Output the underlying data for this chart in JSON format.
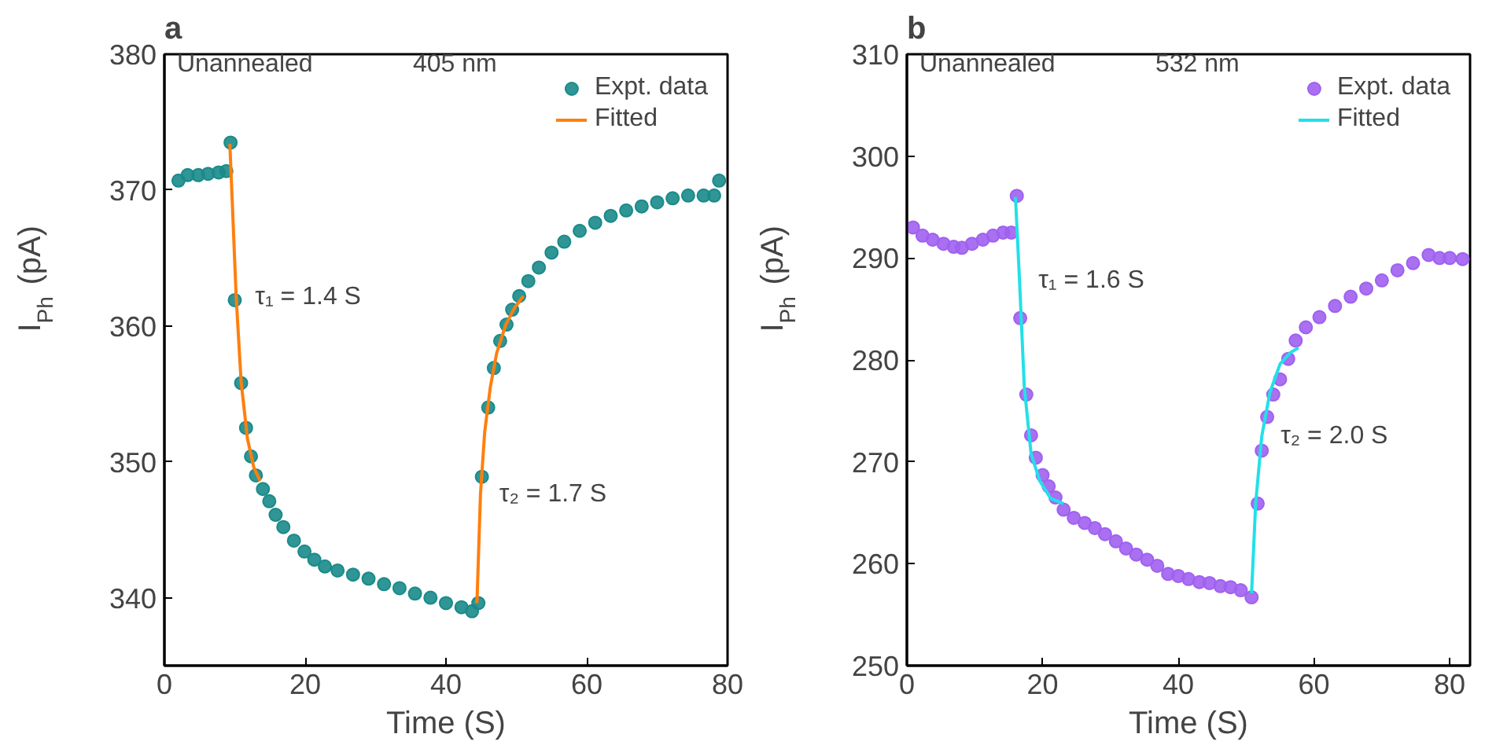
{
  "chart_data": [
    {
      "type": "scatter",
      "title": "a",
      "xlabel": "Time (S)",
      "ylabel": "I$_{Ph}$ (pA)",
      "xlim": [
        0,
        80
      ],
      "ylim": [
        335,
        380
      ],
      "xticks": [
        0,
        20,
        40,
        60,
        80
      ],
      "yticks": [
        340,
        350,
        360,
        370,
        380
      ],
      "grid": false,
      "legend": "top right",
      "annotations": [
        "Unannealed",
        "405 nm",
        {
          "text": "τ₁ = 1.4 S",
          "x": 10.2,
          "y": 362.1
        },
        {
          "text": "τ₂ = 1.7 S",
          "x": 44.9,
          "y": 347.6
        }
      ],
      "series": [
        {
          "name": "Expt. data",
          "marker": "circle",
          "color": "#1a8a8a",
          "x": [
            2.0,
            3.3,
            4.8,
            6.2,
            7.7,
            8.8,
            9.4,
            10.0,
            10.9,
            11.6,
            12.3,
            13.0,
            14.0,
            14.9,
            15.8,
            16.9,
            18.4,
            19.9,
            21.3,
            22.8,
            24.6,
            26.8,
            29.0,
            31.2,
            33.4,
            35.6,
            37.8,
            40.0,
            42.2,
            43.7,
            44.6,
            45.1,
            46.0,
            46.8,
            47.7,
            48.6,
            49.4,
            50.4,
            51.7,
            53.2,
            55.0,
            56.8,
            59.0,
            61.2,
            63.4,
            65.6,
            67.8,
            70.0,
            72.2,
            74.4,
            76.6,
            78.1,
            78.8
          ],
          "values": [
            370.7,
            371.1,
            371.1,
            371.2,
            371.3,
            371.4,
            373.5,
            361.9,
            355.8,
            352.5,
            350.4,
            349.0,
            348.0,
            347.1,
            346.1,
            345.2,
            344.2,
            343.4,
            342.8,
            342.3,
            342.0,
            341.7,
            341.4,
            341.0,
            340.7,
            340.3,
            340.0,
            339.6,
            339.3,
            339.0,
            339.6,
            348.9,
            354.0,
            356.9,
            358.9,
            360.1,
            361.2,
            362.2,
            363.3,
            364.3,
            365.4,
            366.2,
            367.0,
            367.6,
            368.1,
            368.5,
            368.8,
            369.1,
            369.4,
            369.6,
            369.6,
            369.6,
            370.7
          ]
        },
        {
          "name": "Fitted",
          "type": "line",
          "color": "#ff7f0e",
          "line_style": "solid",
          "x": [
            9.3,
            9.7,
            10.2,
            10.9,
            11.8,
            12.7,
            13.6
          ],
          "values": [
            373.4,
            368.4,
            362.1,
            355.9,
            351.7,
            349.6,
            348.6
          ]
        },
        {
          "type": "line",
          "color": "#ff7f0e",
          "line_style": "solid",
          "x": [
            44.4,
            44.9,
            45.5,
            46.3,
            47.2,
            48.5,
            49.7,
            51.0
          ],
          "values": [
            339.6,
            347.6,
            352.2,
            355.5,
            358.0,
            360.1,
            361.3,
            362.2
          ]
        }
      ]
    },
    {
      "type": "scatter",
      "title": "b",
      "xlabel": "Time (S)",
      "ylabel": "I$_{Ph}$ (pA)",
      "xlim": [
        0,
        83
      ],
      "ylim": [
        250,
        310
      ],
      "xticks": [
        0,
        20,
        40,
        60,
        80
      ],
      "yticks": [
        250,
        260,
        270,
        280,
        290,
        300,
        310
      ],
      "grid": false,
      "legend": "top right",
      "annotations": [
        "Unannealed",
        "532 nm",
        {
          "text": "τ₁ = 1.6 S",
          "x": 16.6,
          "y": 287.8
        },
        {
          "text": "τ₂ = 2.0 S",
          "x": 52.3,
          "y": 272.5
        }
      ],
      "series": [
        {
          "name": "Expt. data",
          "marker": "circle",
          "color": "#a060f0",
          "x": [
            0.9,
            2.3,
            3.8,
            5.4,
            6.9,
            8.1,
            9.6,
            11.2,
            12.7,
            14.2,
            15.4,
            16.2,
            16.7,
            17.6,
            18.3,
            19.0,
            20.0,
            20.9,
            21.9,
            23.1,
            24.6,
            26.2,
            27.7,
            29.2,
            30.8,
            32.3,
            33.8,
            35.4,
            36.9,
            38.5,
            40.0,
            41.5,
            43.1,
            44.6,
            46.2,
            47.7,
            49.2,
            50.8,
            51.7,
            52.3,
            53.1,
            54.0,
            55.0,
            56.2,
            57.3,
            58.8,
            60.8,
            63.1,
            65.4,
            67.7,
            70.0,
            72.3,
            74.6,
            76.9,
            78.5,
            80.0,
            81.9
          ],
          "values": [
            293.0,
            292.2,
            291.8,
            291.4,
            291.1,
            291.0,
            291.4,
            291.8,
            292.2,
            292.5,
            292.5,
            296.1,
            284.1,
            276.6,
            272.6,
            270.4,
            268.7,
            267.6,
            266.5,
            265.3,
            264.5,
            264.0,
            263.5,
            262.9,
            262.2,
            261.5,
            260.9,
            260.4,
            259.8,
            259.0,
            258.8,
            258.5,
            258.2,
            258.1,
            257.8,
            257.7,
            257.4,
            256.7,
            265.9,
            271.1,
            274.4,
            276.6,
            278.1,
            280.1,
            281.9,
            283.2,
            284.2,
            285.3,
            286.2,
            287.0,
            287.8,
            288.8,
            289.5,
            290.3,
            290.0,
            290.0,
            289.9
          ]
        },
        {
          "name": "Fitted",
          "type": "line",
          "color": "#22e0e8",
          "line_style": "solid",
          "x": [
            16.0,
            16.6,
            17.3,
            18.3,
            19.6,
            21.2,
            23.1
          ],
          "values": [
            296.0,
            287.8,
            277.4,
            270.8,
            268.1,
            266.4,
            265.9
          ]
        },
        {
          "type": "line",
          "color": "#22e0e8",
          "line_style": "solid",
          "x": [
            50.8,
            51.4,
            52.3,
            53.5,
            55.0,
            56.5,
            57.7
          ],
          "values": [
            257.1,
            265.9,
            272.5,
            276.8,
            279.6,
            280.7,
            281.2
          ]
        }
      ]
    }
  ]
}
